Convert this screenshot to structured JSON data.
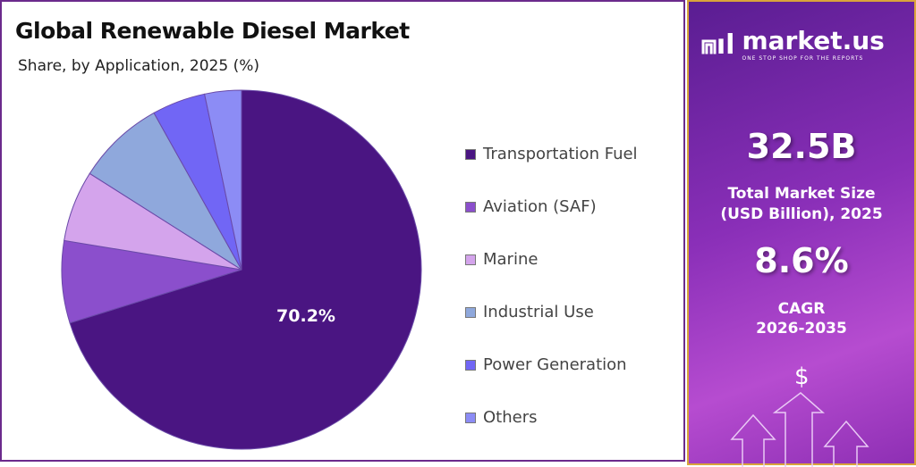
{
  "header": {
    "title": "Global Renewable Diesel Market",
    "subtitle": "Share, by Application, 2025 (%)"
  },
  "chart_data": {
    "type": "pie",
    "title": "Global Renewable Diesel Market",
    "subtitle": "Share, by Application, 2025 (%)",
    "legend_position": "right",
    "categories": [
      "Transportation Fuel",
      "Aviation (SAF)",
      "Marine",
      "Industrial Use",
      "Power Generation",
      "Others"
    ],
    "values": [
      70.2,
      7.4,
      6.4,
      7.9,
      4.8,
      3.3
    ],
    "colors": [
      "#4a1582",
      "#8b4fcc",
      "#d4a4ec",
      "#8fa8dc",
      "#7166f5",
      "#8c8cf5"
    ],
    "data_labels": [
      "70.2%",
      "",
      "",
      "",
      "",
      ""
    ]
  },
  "sidebar": {
    "brand": "market.us",
    "tagline": "ONE STOP SHOP FOR THE REPORTS",
    "market_size": "32.5B",
    "market_size_label_1": "Total Market Size",
    "market_size_label_2": "(USD Billion), 2025",
    "cagr": "8.6%",
    "cagr_label": "CAGR",
    "cagr_period": "2026-2035",
    "currency_symbol": "$"
  }
}
